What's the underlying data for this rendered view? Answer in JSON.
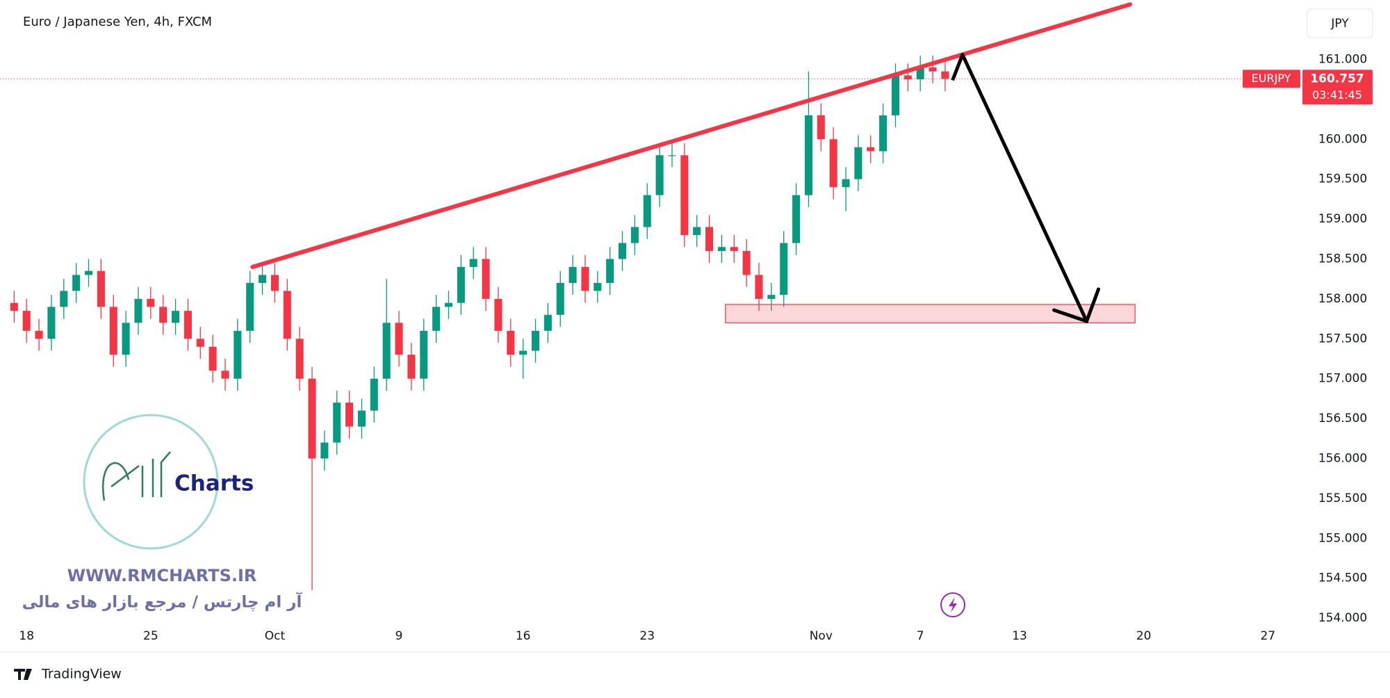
{
  "chart_data": {
    "type": "candlestick",
    "title": "Euro / Japanese Yen, 4h, FXCM",
    "x": [
      -1,
      0,
      1,
      2,
      3,
      4,
      5,
      6,
      7,
      8,
      9,
      10,
      11,
      12,
      13,
      14,
      15,
      16,
      17,
      18,
      19,
      20,
      21,
      22,
      23,
      24,
      25,
      26,
      27,
      28,
      29,
      30,
      31,
      32,
      33,
      34,
      35,
      36,
      37,
      38,
      39,
      40,
      41,
      42,
      43,
      44,
      45,
      46,
      47,
      48,
      49,
      50,
      51,
      52,
      53,
      54,
      55,
      56,
      57,
      58,
      59,
      60,
      61,
      62,
      63,
      64,
      65,
      66,
      67,
      68,
      69,
      70,
      71,
      72,
      73,
      74
    ],
    "open": [
      157.95,
      157.85,
      157.6,
      157.5,
      157.9,
      158.1,
      158.3,
      158.35,
      157.9,
      157.3,
      157.7,
      158.0,
      157.9,
      157.7,
      157.85,
      157.5,
      157.4,
      157.1,
      157.0,
      157.6,
      158.2,
      158.3,
      158.1,
      157.5,
      157.0,
      156.0,
      156.2,
      156.7,
      156.4,
      156.6,
      157.0,
      157.7,
      157.3,
      157.0,
      157.6,
      157.9,
      157.95,
      158.4,
      158.5,
      158.0,
      157.6,
      157.3,
      157.35,
      157.6,
      157.8,
      158.2,
      158.4,
      158.1,
      158.2,
      158.5,
      158.7,
      158.9,
      159.3,
      159.8,
      159.8,
      158.8,
      158.9,
      158.6,
      158.65,
      158.6,
      158.3,
      158.0,
      158.05,
      158.7,
      159.3,
      160.3,
      160.0,
      159.4,
      159.5,
      159.9,
      159.85,
      160.3,
      160.8,
      160.75,
      160.9,
      160.85
    ],
    "high": [
      158.1,
      158.0,
      157.75,
      158.05,
      158.25,
      158.45,
      158.5,
      158.5,
      158.05,
      157.85,
      158.15,
      158.15,
      158.05,
      158.0,
      158.0,
      157.65,
      157.55,
      157.25,
      157.75,
      158.35,
      158.45,
      158.45,
      158.25,
      157.65,
      157.15,
      156.35,
      156.85,
      156.85,
      156.75,
      157.15,
      158.25,
      157.85,
      157.45,
      157.75,
      158.05,
      158.1,
      158.55,
      158.65,
      158.65,
      158.15,
      157.75,
      157.5,
      157.75,
      157.95,
      158.35,
      158.55,
      158.55,
      158.35,
      158.65,
      158.85,
      159.05,
      159.45,
      159.95,
      159.95,
      159.95,
      159.05,
      159.05,
      158.8,
      158.8,
      158.75,
      158.45,
      158.2,
      158.85,
      159.45,
      160.85,
      160.45,
      160.15,
      159.65,
      160.05,
      160.05,
      160.45,
      160.95,
      160.95,
      161.05,
      161.05,
      161.0
    ],
    "low": [
      157.7,
      157.45,
      157.35,
      157.35,
      157.75,
      157.95,
      158.15,
      157.75,
      157.15,
      157.15,
      157.55,
      157.75,
      157.55,
      157.55,
      157.35,
      157.25,
      156.95,
      156.85,
      156.85,
      157.45,
      158.05,
      157.95,
      157.35,
      156.85,
      154.35,
      155.85,
      156.05,
      156.25,
      156.25,
      156.45,
      156.85,
      157.15,
      156.85,
      156.85,
      157.45,
      157.75,
      157.8,
      158.25,
      157.85,
      157.45,
      157.15,
      157.0,
      157.2,
      157.45,
      157.65,
      158.05,
      157.95,
      157.95,
      158.05,
      158.35,
      158.55,
      158.75,
      159.15,
      159.65,
      158.65,
      158.65,
      158.45,
      158.45,
      158.45,
      158.15,
      157.85,
      157.85,
      157.9,
      158.55,
      159.15,
      159.85,
      159.25,
      159.1,
      159.35,
      159.7,
      159.7,
      160.15,
      160.6,
      160.6,
      160.7,
      160.6
    ],
    "close": [
      157.85,
      157.6,
      157.5,
      157.9,
      158.1,
      158.3,
      158.35,
      157.9,
      157.3,
      157.7,
      158.0,
      157.9,
      157.7,
      157.85,
      157.5,
      157.4,
      157.1,
      157.0,
      157.6,
      158.2,
      158.3,
      158.1,
      157.5,
      157.0,
      156.0,
      156.2,
      156.7,
      156.4,
      156.6,
      157.0,
      157.7,
      157.3,
      157.0,
      157.6,
      157.9,
      157.95,
      158.4,
      158.5,
      158.0,
      157.6,
      157.3,
      157.35,
      157.6,
      157.8,
      158.2,
      158.4,
      158.1,
      158.2,
      158.5,
      158.7,
      158.9,
      159.3,
      159.8,
      159.8,
      158.8,
      158.9,
      158.6,
      158.65,
      158.6,
      158.3,
      158.0,
      158.05,
      158.7,
      159.3,
      160.3,
      160.0,
      159.4,
      159.5,
      159.9,
      159.85,
      160.3,
      160.8,
      160.75,
      160.9,
      160.85,
      160.757
    ],
    "up_color": "#089981",
    "down_color": "#f23645",
    "xlim": [
      -2.14,
      102.56
    ],
    "xticks": [
      {
        "value": 0,
        "label": "18"
      },
      {
        "value": 10,
        "label": "25"
      },
      {
        "value": 20,
        "label": "Oct"
      },
      {
        "value": 30,
        "label": "9"
      },
      {
        "value": 40,
        "label": "16"
      },
      {
        "value": 50,
        "label": "23"
      },
      {
        "value": 64,
        "label": "Nov"
      },
      {
        "value": 72,
        "label": "7"
      },
      {
        "value": 80,
        "label": "13"
      },
      {
        "value": 90,
        "label": "20"
      },
      {
        "value": 100,
        "label": "27"
      }
    ],
    "ylim": [
      153.905,
      161.745
    ],
    "yticks": [
      {
        "value": 154,
        "label": "154.000"
      },
      {
        "value": 154.5,
        "label": "154.500"
      },
      {
        "value": 155,
        "label": "155.000"
      },
      {
        "value": 155.5,
        "label": "155.500"
      },
      {
        "value": 156,
        "label": "156.000"
      },
      {
        "value": 156.5,
        "label": "156.500"
      },
      {
        "value": 157,
        "label": "157.000"
      },
      {
        "value": 157.5,
        "label": "157.500"
      },
      {
        "value": 158,
        "label": "158.000"
      },
      {
        "value": 158.5,
        "label": "158.500"
      },
      {
        "value": 159,
        "label": "159.000"
      },
      {
        "value": 159.5,
        "label": "159.500"
      },
      {
        "value": 160,
        "label": "160.000"
      },
      {
        "value": 160.5,
        "label": "160.500"
      },
      {
        "value": 161,
        "label": "161.000"
      }
    ],
    "last_price": {
      "symbol": "EURJPY",
      "value": 160.757,
      "countdown": "03:41:45"
    },
    "trendline": {
      "x": [
        18.2,
        88.9
      ],
      "y": [
        158.4,
        161.69
      ],
      "color": "#f23645"
    },
    "zone": {
      "x": [
        56.3,
        89.3
      ],
      "y": [
        157.7,
        157.93
      ]
    },
    "arrow": {
      "x": [
        74.6,
        75.4,
        85.4
      ],
      "y": [
        160.74,
        161.06,
        157.72
      ]
    }
  },
  "ui": {
    "currency": "JPY",
    "brand": "TradingView",
    "watermark": {
      "logo": "Charts",
      "url": "WWW.RMCHARTS.IR",
      "tagline": "آر ام چارتس / مرجع بازار های مالی"
    }
  }
}
